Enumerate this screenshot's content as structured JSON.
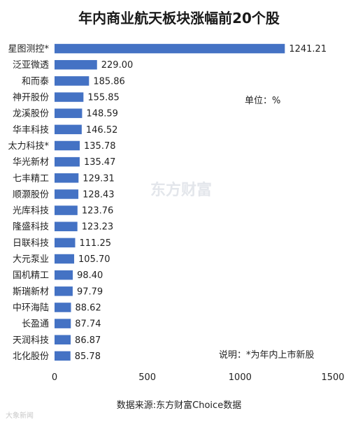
{
  "chart_data": {
    "type": "bar",
    "orientation": "horizontal",
    "title": "年内商业航天板块涨幅前20个股",
    "categories": [
      "星图测控*",
      "泛亚微透",
      "和而泰",
      "神开股份",
      "龙溪股份",
      "华丰科技",
      "太力科技*",
      "华光新材",
      "七丰精工",
      "顺灏股份",
      "光库科技",
      "隆盛科技",
      "日联科技",
      "大元泵业",
      "国机精工",
      "斯瑞新材",
      "中环海陆",
      "长盈通",
      "天润科技",
      "北化股份"
    ],
    "values": [
      1241.21,
      229.0,
      185.86,
      155.85,
      148.59,
      146.52,
      135.78,
      135.47,
      129.31,
      128.43,
      123.76,
      123.23,
      111.25,
      105.7,
      98.4,
      97.79,
      88.62,
      87.74,
      86.87,
      85.78
    ],
    "value_labels": [
      "1241.21",
      "229.00",
      "185.86",
      "155.85",
      "148.59",
      "146.52",
      "135.78",
      "135.47",
      "129.31",
      "128.43",
      "123.76",
      "123.23",
      "111.25",
      "105.70",
      "98.40",
      "97.79",
      "88.62",
      "87.74",
      "86.87",
      "85.78"
    ],
    "xlim": [
      0,
      1500
    ],
    "xticks": [
      0,
      500,
      1000,
      1500
    ],
    "xtick_labels": [
      "0",
      "500",
      "1000",
      "1500"
    ],
    "grid": false,
    "bar_color": "#4472c4"
  },
  "unit_label": "单位：%",
  "note": "说明：*为年内上市新股",
  "source": "数据来源:东方财富Choice数据",
  "watermark": "东方财富",
  "corner_logo": "大象新闻"
}
